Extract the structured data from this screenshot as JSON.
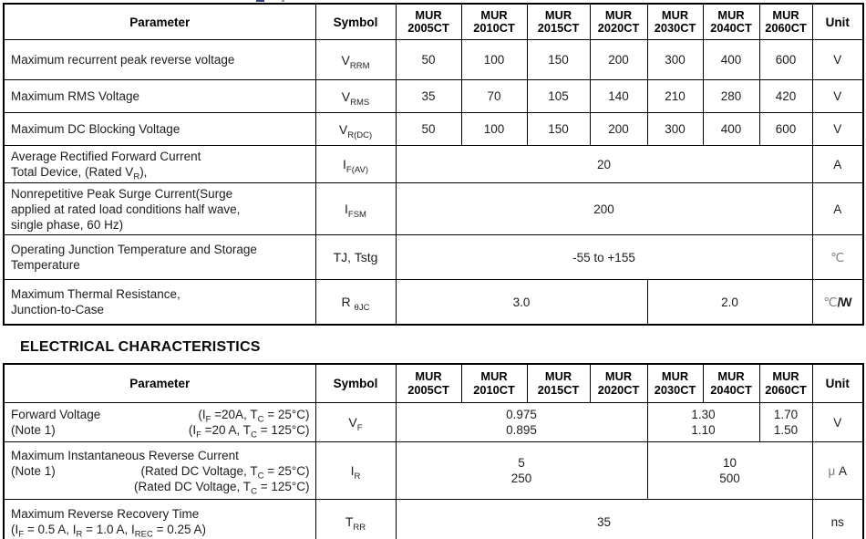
{
  "section2_title": "ELECTRICAL CHARACTERISTICS",
  "headers": {
    "parameter": "Parameter",
    "symbol": "Symbol",
    "unit": "Unit",
    "models": [
      {
        "l1": "MUR",
        "l2": "2005CT"
      },
      {
        "l1": "MUR",
        "l2": "2010CT"
      },
      {
        "l1": "MUR",
        "l2": "2015CT"
      },
      {
        "l1": "MUR",
        "l2": "2020CT"
      },
      {
        "l1": "MUR",
        "l2": "2030CT"
      },
      {
        "l1": "MUR",
        "l2": "2040CT"
      },
      {
        "l1": "MUR",
        "l2": "2060CT"
      }
    ]
  },
  "colors": {
    "border": "#000000",
    "text": "#1d1d1d",
    "degree_grey": "#7d7d7d",
    "remnant_blue": "#33417a"
  },
  "t1": {
    "rows": [
      {
        "param": "Maximum recurrent peak reverse voltage",
        "symbol": [
          {
            "t": "V"
          },
          {
            "s": "RRM"
          }
        ],
        "values": [
          "50",
          "100",
          "150",
          "200",
          "300",
          "400",
          "600"
        ],
        "unit": "V"
      },
      {
        "param": "Maximum RMS Voltage",
        "symbol": [
          {
            "t": "V"
          },
          {
            "s": "RMS"
          }
        ],
        "values": [
          "35",
          "70",
          "105",
          "140",
          "210",
          "280",
          "420"
        ],
        "unit": "V"
      },
      {
        "param": "Maximum DC Blocking Voltage",
        "symbol": [
          {
            "t": "V"
          },
          {
            "s": "R(DC)"
          }
        ],
        "values": [
          "50",
          "100",
          "150",
          "200",
          "300",
          "400",
          "600"
        ],
        "unit": "V"
      },
      {
        "param": [
          {
            "t": "Average Rectified Forward Current"
          },
          {
            "br": true
          },
          {
            "t": "Total Device, (Rated V"
          },
          {
            "s": "R"
          },
          {
            "t": "),"
          }
        ],
        "symbol": [
          {
            "t": "I"
          },
          {
            "s": "F(AV)"
          }
        ],
        "value_all": "20",
        "unit": "A"
      },
      {
        "param": [
          {
            "t": "Nonrepetitive Peak Surge Current(Surge"
          },
          {
            "br": true
          },
          {
            "t": "applied at rated load conditions half wave,"
          },
          {
            "br": true
          },
          {
            "t": "single phase, 60 Hz)"
          }
        ],
        "symbol": [
          {
            "t": "I"
          },
          {
            "s": "FSM"
          }
        ],
        "value_all": "200",
        "unit": "A"
      },
      {
        "param": [
          {
            "t": "Operating Junction Temperature and Storage"
          },
          {
            "br": true
          },
          {
            "t": "Temperature"
          }
        ],
        "symbol": "TJ, Tstg",
        "value_all": "-55 to +155",
        "unit": [
          {
            "t": "℃",
            "c": "deg"
          }
        ]
      },
      {
        "param": [
          {
            "t": "Maximum Thermal Resistance,"
          },
          {
            "br": true
          },
          {
            "t": "Junction-to-Case"
          }
        ],
        "symbol": [
          {
            "t": "R "
          },
          {
            "s": "θJC"
          }
        ],
        "value_left": "3.0",
        "value_right": "2.0",
        "unit": [
          {
            "t": "℃",
            "c": "deg"
          },
          {
            "t": "/W",
            "c": "w"
          }
        ]
      }
    ]
  },
  "t2": {
    "rows": [
      {
        "left1": "Forward Voltage",
        "right1": [
          {
            "t": "(I"
          },
          {
            "s": "F"
          },
          {
            "t": " =20A, T"
          },
          {
            "s": "C"
          },
          {
            "t": " = 25°C)"
          }
        ],
        "left2": "(Note 1)",
        "right2": [
          {
            "t": "(I"
          },
          {
            "s": "F"
          },
          {
            "t": " =20 A, T"
          },
          {
            "s": "C"
          },
          {
            "t": " = 125°C)"
          }
        ],
        "symbol": [
          {
            "t": "V"
          },
          {
            "s": "F"
          }
        ],
        "v14": [
          {
            "t": "0.975"
          },
          {
            "br": true
          },
          {
            "t": "0.895"
          }
        ],
        "v56": [
          {
            "t": "1.30"
          },
          {
            "br": true
          },
          {
            "t": "1.10"
          }
        ],
        "v7": [
          {
            "t": "1.70"
          },
          {
            "br": true
          },
          {
            "t": "1.50"
          }
        ],
        "unit": "V"
      },
      {
        "line1": "Maximum Instantaneous Reverse Current",
        "left2": "(Note 1)",
        "right2": [
          {
            "t": "(Rated DC Voltage, T"
          },
          {
            "s": "C"
          },
          {
            "t": " = 25°C)"
          }
        ],
        "right3": [
          {
            "t": "(Rated DC Voltage, T"
          },
          {
            "s": "C"
          },
          {
            "t": " = 125°C)"
          }
        ],
        "symbol": [
          {
            "t": "I"
          },
          {
            "s": "R"
          }
        ],
        "v14": [
          {
            "t": "5"
          },
          {
            "br": true
          },
          {
            "t": "250"
          }
        ],
        "v57": [
          {
            "t": "10"
          },
          {
            "br": true
          },
          {
            "t": "500"
          }
        ],
        "unit": [
          {
            "t": "μ ",
            "c": "mu"
          },
          {
            "t": "A"
          }
        ]
      },
      {
        "line1": "Maximum Reverse Recovery Time",
        "line2": [
          {
            "t": "(I"
          },
          {
            "s": "F"
          },
          {
            "t": " = 0.5 A, I"
          },
          {
            "s": "R"
          },
          {
            "t": " = 1.0 A, I"
          },
          {
            "s": "REC"
          },
          {
            "t": " = 0.25 A)"
          }
        ],
        "symbol": [
          {
            "t": "T"
          },
          {
            "s": "RR"
          }
        ],
        "value_all": "35",
        "unit": "ns"
      }
    ]
  }
}
